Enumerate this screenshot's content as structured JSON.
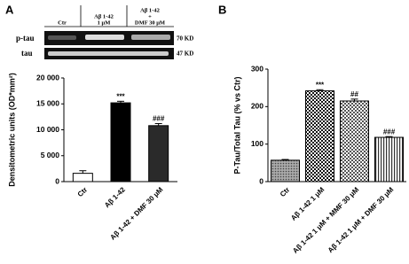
{
  "panels": [
    "A",
    "B"
  ],
  "blot": {
    "lanes": [
      [
        "Ctr"
      ],
      [
        "Aβ 1-42",
        "1 μM"
      ],
      [
        "Aβ 1-42",
        "+",
        "DMF 30 μM"
      ]
    ],
    "rows": [
      "p-tau",
      "tau"
    ],
    "sizes": [
      "70 KD",
      "47 KD"
    ]
  },
  "chart_data": [
    {
      "type": "bar",
      "y_label": "Densitometric units (OD*mm²)",
      "categories": [
        "Ctr",
        "Aβ 1-42",
        "Aβ 1-42 + DMF 30 μM"
      ],
      "values": [
        1600,
        15200,
        10800
      ],
      "errors": [
        500,
        300,
        400
      ],
      "annotations": [
        null,
        "***",
        "###"
      ],
      "colors": [
        "#ffffff",
        "#000000",
        "#2a2a2a"
      ],
      "ylim": [
        0,
        20000
      ],
      "yticks": [
        0,
        {
          "value": 5000,
          "label": "5 000"
        },
        {
          "value": 10000,
          "label": "10 000"
        },
        {
          "value": 15000,
          "label": "15 000"
        },
        {
          "value": 20000,
          "label": "20 000"
        }
      ]
    },
    {
      "type": "bar",
      "y_label": "P-Tau/Total Tau (% vs Ctr)",
      "categories": [
        "Ctr",
        "Aβ 1-42 1 μM",
        "Aβ 1-42 1 μM + MMF 30 μM",
        "Aβ 1-42 1 μM + DMF 30 μM"
      ],
      "values": [
        57,
        242,
        215,
        118
      ],
      "errors": [
        2,
        3,
        5,
        2
      ],
      "annotations": [
        null,
        "***",
        "##",
        "###"
      ],
      "patterns": [
        "dots",
        "checker",
        "checker-light",
        "vlines"
      ],
      "ylim": [
        0,
        300
      ],
      "yticks": [
        0,
        100,
        200,
        300
      ]
    }
  ]
}
